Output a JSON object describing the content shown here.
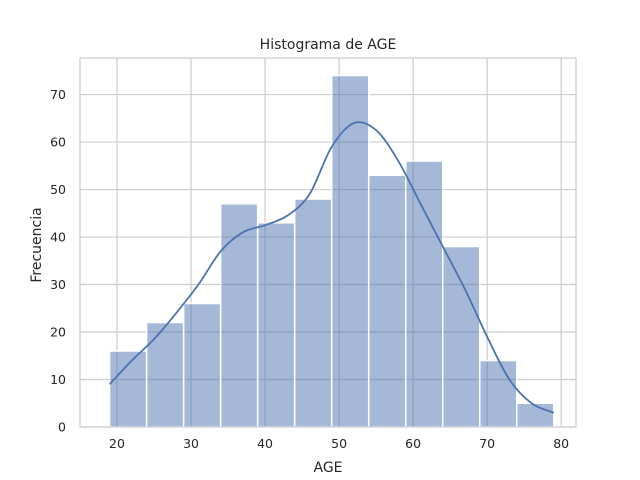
{
  "chart_data": {
    "type": "bar",
    "title": "Histograma de AGE",
    "xlabel": "AGE",
    "ylabel": "Frecuencia",
    "bin_edges": [
      19,
      24,
      29,
      34,
      39,
      44,
      49,
      54,
      59,
      64,
      69,
      74,
      79
    ],
    "values": [
      16,
      22,
      26,
      47,
      43,
      48,
      74,
      53,
      56,
      38,
      14,
      5
    ],
    "xlim": [
      15,
      82
    ],
    "ylim": [
      0,
      77.7
    ],
    "xticks": [
      "20",
      "30",
      "40",
      "50",
      "60",
      "70",
      "80"
    ],
    "yticks": [
      "0",
      "10",
      "20",
      "30",
      "40",
      "50",
      "60",
      "70"
    ],
    "kde": {
      "x": [
        19,
        22,
        25,
        28,
        31,
        34,
        37,
        40,
        43,
        46,
        49,
        52,
        55,
        58,
        61,
        64,
        67,
        70,
        73,
        76,
        79
      ],
      "y": [
        9,
        14,
        18.5,
        24,
        30,
        37,
        41,
        42.5,
        44.5,
        49,
        59,
        64,
        62.5,
        56,
        47,
        38,
        29,
        19,
        10,
        5,
        3
      ]
    },
    "grid": true,
    "bar_color": "#4c72b0",
    "line_color": "#4c72b0",
    "grid_color": "#cccccc"
  }
}
